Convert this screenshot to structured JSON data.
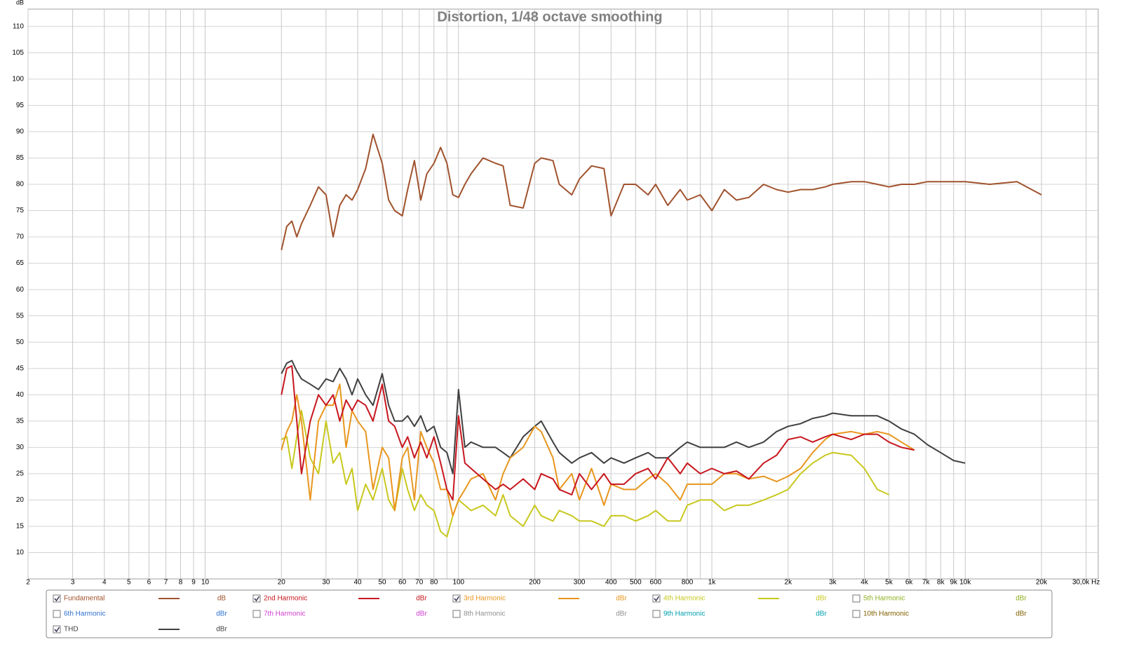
{
  "chart_data": {
    "type": "line",
    "title": "Distortion, 1/48 octave smoothing",
    "y_label": "dB",
    "xscale": "log",
    "xlim": [
      2,
      33500
    ],
    "ylim": [
      5,
      113.3
    ],
    "grid": true,
    "xticks": [
      2,
      3,
      4,
      5,
      6,
      7,
      8,
      9,
      10,
      20,
      30,
      40,
      50,
      60,
      70,
      80,
      100,
      200,
      300,
      400,
      500,
      600,
      800,
      {
        "value": 1000,
        "label": "1k"
      },
      {
        "value": 2000,
        "label": "2k"
      },
      {
        "value": 3000,
        "label": "3k"
      },
      {
        "value": 4000,
        "label": "4k"
      },
      {
        "value": 5000,
        "label": "5k"
      },
      {
        "value": 6000,
        "label": "6k"
      },
      {
        "value": 7000,
        "label": "7k"
      },
      {
        "value": 8000,
        "label": "8k"
      },
      {
        "value": 9000,
        "label": "9k"
      },
      {
        "value": 10000,
        "label": "10k"
      },
      {
        "value": 20000,
        "label": "20k"
      },
      {
        "value": 30000,
        "label": "30,0k Hz"
      }
    ],
    "xgrid_minor": [
      90,
      900
    ],
    "yticks": [
      10,
      15,
      20,
      25,
      30,
      35,
      40,
      45,
      50,
      55,
      60,
      65,
      70,
      75,
      80,
      85,
      90,
      95,
      100,
      105,
      110
    ],
    "x": [
      20,
      21,
      22,
      23,
      24,
      26,
      28,
      30,
      32,
      34,
      36,
      38,
      40,
      43,
      46,
      50,
      53,
      56,
      60,
      63,
      67,
      71,
      75,
      80,
      85,
      90,
      95,
      100,
      106,
      112,
      125,
      140,
      150,
      160,
      180,
      200,
      212,
      236,
      250,
      280,
      300,
      335,
      375,
      400,
      450,
      500,
      560,
      600,
      670,
      750,
      800,
      900,
      1000,
      1120,
      1250,
      1400,
      1600,
      1800,
      2000,
      2240,
      2500,
      2800,
      3000,
      3550,
      4000,
      4500,
      5000,
      5600,
      6300,
      7100,
      8000,
      9000,
      10000,
      12500,
      16000,
      20000
    ],
    "series": [
      {
        "name": "Fundamental",
        "unit": "dB",
        "checked": true,
        "color": "#a0522d",
        "values": [
          67.5,
          72,
          73,
          70,
          72.5,
          76,
          79.5,
          78,
          70,
          76,
          78,
          77,
          79,
          83,
          89.5,
          84,
          77,
          75,
          74,
          79,
          84.5,
          77,
          82,
          84,
          87,
          84,
          78,
          77.5,
          80,
          82,
          85,
          84,
          83.5,
          76,
          75.5,
          84,
          85,
          84.5,
          80,
          78,
          81,
          83.5,
          83,
          74,
          80,
          80,
          78,
          80,
          76,
          79,
          77,
          78,
          75,
          79,
          77,
          77.5,
          80,
          79,
          78.5,
          79,
          79,
          79.5,
          80,
          80.5,
          80.5,
          80,
          79.5,
          80,
          80,
          80.5,
          80.5,
          80.5,
          80.5,
          80,
          80.5,
          78
        ]
      },
      {
        "name": "2nd Harmonic",
        "unit": "dBr",
        "checked": true,
        "color": "#c8161e",
        "values": [
          40,
          45,
          45.5,
          35,
          25,
          35,
          40,
          38,
          40,
          35,
          39,
          37,
          39,
          38,
          35,
          42,
          35,
          34,
          30,
          32,
          28,
          31,
          28,
          32,
          27,
          22,
          20,
          36,
          27,
          26,
          24,
          22,
          23,
          22,
          24,
          22,
          25,
          24,
          22,
          21,
          25,
          22,
          25,
          23,
          23,
          25,
          26,
          24,
          28,
          25,
          27,
          25,
          26,
          25,
          25.5,
          24,
          27,
          28.5,
          31.5,
          32,
          31,
          32,
          32.5,
          31.5,
          32.5,
          32.5,
          31,
          30,
          29.5,
          null,
          null,
          null,
          null,
          null,
          null,
          null
        ]
      },
      {
        "name": "3rd Harmonic",
        "unit": "dBr",
        "checked": true,
        "color": "#e8961e",
        "values": [
          29.5,
          33,
          35,
          40,
          35,
          20,
          35,
          38,
          38,
          42,
          30,
          37,
          35,
          33,
          22,
          30,
          28,
          18,
          28,
          30,
          20,
          33,
          30,
          27,
          22,
          22,
          17,
          20,
          22,
          24,
          25,
          20,
          25,
          28,
          30,
          34,
          33,
          28,
          22,
          25,
          20,
          26,
          19,
          23,
          22,
          22,
          24,
          25,
          23,
          20,
          23,
          23,
          23,
          25,
          25,
          24,
          24.5,
          23.5,
          24.5,
          26,
          29,
          31.5,
          32.5,
          33,
          32.5,
          33,
          32.5,
          31,
          29.5,
          null,
          null,
          null,
          null,
          null,
          null,
          null
        ]
      },
      {
        "name": "4th Harmonic",
        "unit": "dBr",
        "checked": true,
        "color": "#c8c81e",
        "values": [
          31.5,
          32,
          26,
          32,
          37,
          28,
          25,
          35,
          27,
          29,
          23,
          26,
          18,
          23,
          20,
          26,
          20,
          18,
          26,
          22,
          18,
          21,
          19,
          18,
          14,
          13,
          17,
          20,
          19,
          18,
          19,
          17,
          21,
          17,
          15,
          19,
          17,
          16,
          18,
          17,
          16,
          16,
          15,
          17,
          17,
          16,
          17,
          18,
          16,
          16,
          19,
          20,
          20,
          18,
          19,
          19,
          20,
          21,
          22,
          25,
          27,
          28.5,
          29,
          28.5,
          26,
          22,
          21,
          null,
          null,
          null,
          null,
          null,
          null,
          null,
          null,
          null
        ]
      },
      {
        "name": "5th Harmonic",
        "unit": "dBr",
        "checked": false,
        "color": "#90b020"
      },
      {
        "name": "6th Harmonic",
        "unit": "dBr",
        "checked": false,
        "color": "#3070d0"
      },
      {
        "name": "7th Harmonic",
        "unit": "dBr",
        "checked": false,
        "color": "#d040d0"
      },
      {
        "name": "8th Harmonic",
        "unit": "dBr",
        "checked": false,
        "color": "#909090"
      },
      {
        "name": "9th Harmonic",
        "unit": "dBr",
        "checked": false,
        "color": "#00a0b0"
      },
      {
        "name": "10th Harmonic",
        "unit": "dBr",
        "checked": false,
        "color": "#806000"
      },
      {
        "name": "THD",
        "unit": "dBr",
        "checked": true,
        "color": "#404040",
        "values": [
          44,
          46,
          46.5,
          44.5,
          43,
          42,
          41,
          43,
          42.5,
          45,
          43,
          40,
          43,
          40,
          38,
          44,
          38,
          35,
          35,
          36,
          34,
          36,
          33,
          34,
          30,
          29,
          25,
          41,
          30,
          31,
          30,
          30,
          29,
          28,
          32,
          34,
          35,
          31,
          29,
          27,
          28,
          29,
          27,
          28,
          27,
          28,
          29,
          28,
          28,
          30,
          31,
          30,
          30,
          30,
          31,
          30,
          31,
          33,
          34,
          34.5,
          35.5,
          36,
          36.5,
          36,
          36,
          36,
          35,
          33.5,
          32.5,
          30.5,
          29,
          27.5,
          27,
          null,
          null,
          null
        ]
      }
    ]
  }
}
